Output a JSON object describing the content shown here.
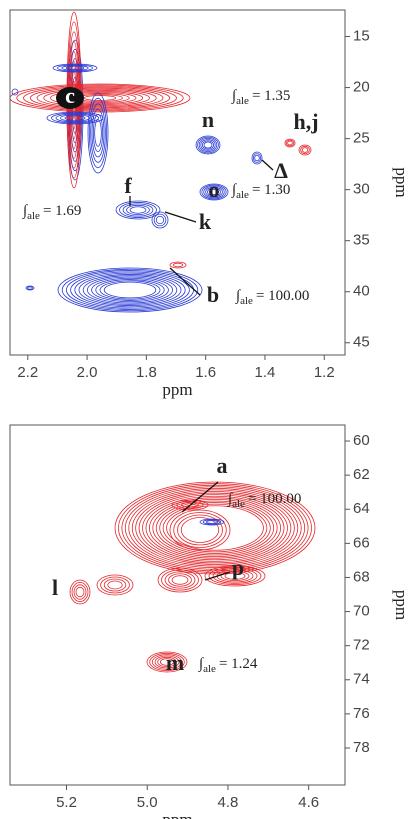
{
  "chart_data": [
    {
      "type": "contour",
      "x_label": "ppm",
      "y_label": "ppm",
      "xlim": [
        2.26,
        1.13
      ],
      "ylim": [
        12.4,
        46.2
      ],
      "xticks": [
        2.2,
        {
          "value": 2,
          "label": "2.0"
        },
        1.8,
        1.6,
        1.4,
        1.2
      ],
      "yticks": [
        15,
        20,
        25,
        30,
        35,
        40,
        45
      ],
      "peak_labels": [
        "c",
        "n",
        "h,j",
        "Δ",
        "o",
        "f",
        "k",
        "b"
      ],
      "integral_symbol": "∫",
      "integral_subscript": "ale",
      "integrals": [
        "= 1.35",
        "= 1.30",
        "= 1.69",
        "= 100.00"
      ]
    },
    {
      "type": "contour",
      "x_label": "ppm",
      "y_label": "ppm",
      "xlim": [
        5.34,
        4.51
      ],
      "ylim": [
        59.06,
        80.17
      ],
      "xticks": [
        5.2,
        {
          "value": 5,
          "label": "5.0"
        },
        4.8,
        4.6
      ],
      "yticks": [
        60,
        62,
        64,
        66,
        68,
        70,
        72,
        74,
        76,
        78
      ],
      "peak_labels": [
        "a",
        "p",
        "l",
        "m"
      ],
      "integral_symbol": "∫",
      "integral_subscript": "ale",
      "integrals": [
        "= 100.00",
        "= 1.24"
      ]
    }
  ]
}
